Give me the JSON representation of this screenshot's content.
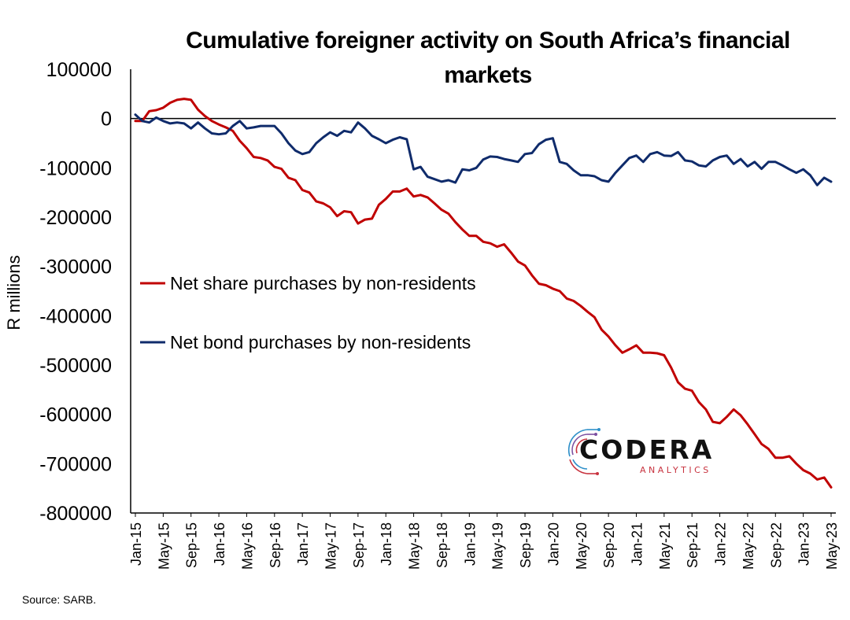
{
  "source": "Source: SARB.",
  "brand": {
    "name": "CODERA",
    "sub": "ANALYTICS"
  },
  "chart_data": {
    "type": "line",
    "title": "Cumulative foreigner activity on South Africa’s financial markets",
    "title_lines": [
      "Cumulative foreigner activity on South Africa’s financial",
      "markets"
    ],
    "ylabel": "R millions",
    "xlabel": "",
    "ylim": [
      -800000,
      100000
    ],
    "yticks": [
      100000,
      0,
      -100000,
      -200000,
      -300000,
      -400000,
      -500000,
      -600000,
      -700000,
      -800000
    ],
    "xticks": [
      "Jan-15",
      "May-15",
      "Sep-15",
      "Jan-16",
      "May-16",
      "Sep-16",
      "Jan-17",
      "May-17",
      "Sep-17",
      "Jan-18",
      "May-18",
      "Sep-18",
      "Jan-19",
      "May-19",
      "Sep-19",
      "Jan-20",
      "May-20",
      "Sep-20",
      "Jan-21",
      "May-21",
      "Sep-21",
      "Jan-22",
      "May-22",
      "Sep-22",
      "Jan-23",
      "May-23"
    ],
    "x_start": "Jan-15",
    "x_end": "May-23",
    "legend_position": "middle-left",
    "colors": {
      "share": "#c00000",
      "bond": "#0f2b6b"
    },
    "series": [
      {
        "name": "Net share purchases by non-residents",
        "color": "#c00000",
        "values": [
          -5000,
          -5000,
          15000,
          17000,
          22000,
          32000,
          38000,
          40000,
          38000,
          18000,
          5000,
          -5000,
          -12000,
          -18000,
          -25000,
          -45000,
          -60000,
          -78000,
          -80000,
          -85000,
          -98000,
          -102000,
          -120000,
          -125000,
          -145000,
          -150000,
          -168000,
          -172000,
          -180000,
          -198000,
          -188000,
          -190000,
          -213000,
          -205000,
          -203000,
          -175000,
          -163000,
          -148000,
          -148000,
          -142000,
          -158000,
          -155000,
          -160000,
          -172000,
          -185000,
          -193000,
          -210000,
          -225000,
          -238000,
          -238000,
          -250000,
          -253000,
          -260000,
          -255000,
          -272000,
          -290000,
          -298000,
          -318000,
          -335000,
          -338000,
          -345000,
          -350000,
          -365000,
          -370000,
          -380000,
          -392000,
          -403000,
          -428000,
          -442000,
          -460000,
          -475000,
          -468000,
          -460000,
          -475000,
          -475000,
          -476000,
          -480000,
          -505000,
          -535000,
          -548000,
          -552000,
          -575000,
          -590000,
          -615000,
          -618000,
          -605000,
          -590000,
          -602000,
          -620000,
          -640000,
          -660000,
          -670000,
          -688000,
          -688000,
          -685000,
          -700000,
          -713000,
          -720000,
          -732000,
          -728000,
          -748000
        ]
      },
      {
        "name": "Net bond purchases by non-residents",
        "color": "#0f2b6b",
        "values": [
          8000,
          -5000,
          -8000,
          2000,
          -5000,
          -10000,
          -8000,
          -10000,
          -20000,
          -8000,
          -20000,
          -30000,
          -32000,
          -30000,
          -15000,
          -5000,
          -20000,
          -18000,
          -15000,
          -15000,
          -15000,
          -30000,
          -50000,
          -65000,
          -72000,
          -68000,
          -50000,
          -38000,
          -28000,
          -35000,
          -25000,
          -28000,
          -8000,
          -20000,
          -35000,
          -42000,
          -50000,
          -43000,
          -38000,
          -42000,
          -103000,
          -98000,
          -118000,
          -123000,
          -128000,
          -125000,
          -130000,
          -103000,
          -105000,
          -100000,
          -83000,
          -77000,
          -78000,
          -82000,
          -85000,
          -88000,
          -72000,
          -70000,
          -52000,
          -43000,
          -40000,
          -88000,
          -92000,
          -105000,
          -115000,
          -115000,
          -117000,
          -125000,
          -128000,
          -110000,
          -95000,
          -80000,
          -75000,
          -88000,
          -72000,
          -68000,
          -75000,
          -76000,
          -68000,
          -85000,
          -87000,
          -95000,
          -97000,
          -85000,
          -78000,
          -75000,
          -92000,
          -82000,
          -97000,
          -88000,
          -102000,
          -88000,
          -88000,
          -95000,
          -103000,
          -110000,
          -103000,
          -115000,
          -135000,
          -120000,
          -128000
        ]
      }
    ]
  }
}
